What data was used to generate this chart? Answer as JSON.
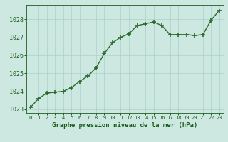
{
  "x": [
    0,
    1,
    2,
    3,
    4,
    5,
    6,
    7,
    8,
    9,
    10,
    11,
    12,
    13,
    14,
    15,
    16,
    17,
    18,
    19,
    20,
    21,
    22,
    23
  ],
  "y": [
    1023.1,
    1023.6,
    1023.9,
    1023.95,
    1024.0,
    1024.2,
    1024.55,
    1024.85,
    1025.3,
    1026.1,
    1026.7,
    1027.0,
    1027.2,
    1027.65,
    1027.75,
    1027.85,
    1027.65,
    1027.15,
    1027.15,
    1027.15,
    1027.1,
    1027.15,
    1027.95,
    1028.5
  ],
  "ylim": [
    1022.8,
    1028.8
  ],
  "yticks": [
    1023,
    1024,
    1025,
    1026,
    1027,
    1028
  ],
  "xticks": [
    0,
    1,
    2,
    3,
    4,
    5,
    6,
    7,
    8,
    9,
    10,
    11,
    12,
    13,
    14,
    15,
    16,
    17,
    18,
    19,
    20,
    21,
    22,
    23
  ],
  "line_color": "#2d6a2d",
  "marker": "+",
  "bg_color": "#cce8e0",
  "grid_color": "#aad0c8",
  "xlabel": "Graphe pression niveau de la mer (hPa)",
  "xlabel_color": "#1a5c1a",
  "tick_color": "#1a5c1a",
  "linewidth": 1.0,
  "markersize": 4.5,
  "markeredgewidth": 1.2
}
